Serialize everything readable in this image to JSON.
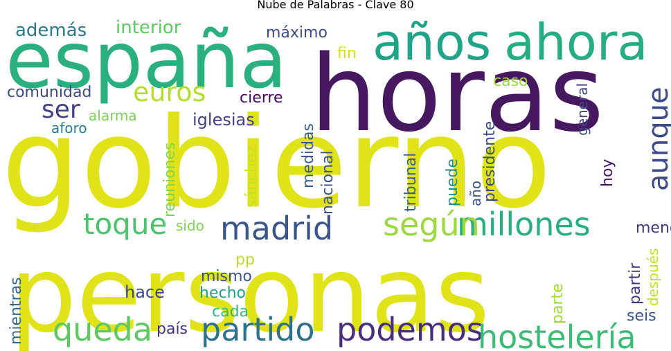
{
  "title": "Nube de Palabras - Clave 80",
  "words": [
    {
      "text": "gobierno",
      "color": "#dfe318"
    },
    {
      "text": "personas",
      "color": "#dfe318"
    },
    {
      "text": "horas",
      "color": "#46185f"
    },
    {
      "text": "españa",
      "color": "#2ab07f"
    },
    {
      "text": "años",
      "color": "#20a386"
    },
    {
      "text": "ahora",
      "color": "#25ac82"
    },
    {
      "text": "partido",
      "color": "#2c718e"
    },
    {
      "text": "podemos",
      "color": "#472f7d"
    },
    {
      "text": "hostelería",
      "color": "#3bbb75"
    },
    {
      "text": "millones",
      "color": "#29af7f"
    },
    {
      "text": "queda",
      "color": "#5ec962"
    },
    {
      "text": "madrid",
      "color": "#3a548c"
    },
    {
      "text": "según",
      "color": "#9bd93c"
    },
    {
      "text": "toque",
      "color": "#4cc26c"
    },
    {
      "text": "euros",
      "color": "#b5de2b"
    },
    {
      "text": "aunque",
      "color": "#3e4989"
    },
    {
      "text": "ser",
      "color": "#424086"
    },
    {
      "text": "además",
      "color": "#2a788e"
    },
    {
      "text": "interior",
      "color": "#5ec962"
    },
    {
      "text": "máximo",
      "color": "#3e4989"
    },
    {
      "text": "fin",
      "color": "#d8e219"
    },
    {
      "text": "comunidad",
      "color": "#3e4989"
    },
    {
      "text": "cierre",
      "color": "#46085c"
    },
    {
      "text": "caso",
      "color": "#9bd93c"
    },
    {
      "text": "alarma",
      "color": "#7ad151"
    },
    {
      "text": "iglesias",
      "color": "#433e85"
    },
    {
      "text": "aforo",
      "color": "#277f8e"
    },
    {
      "text": "general",
      "color": "#414487"
    },
    {
      "text": "presidente",
      "color": "#3e4a89"
    },
    {
      "text": "reuniones",
      "color": "#84d44b"
    },
    {
      "text": "sánchez",
      "color": "#c8e020"
    },
    {
      "text": "medidas",
      "color": "#365c8d"
    },
    {
      "text": "nacional",
      "color": "#3b528b"
    },
    {
      "text": "tribunal",
      "color": "#33638d"
    },
    {
      "text": "puede",
      "color": "#21918c"
    },
    {
      "text": "menos",
      "color": "#453781"
    },
    {
      "text": "año",
      "color": "#3b528b"
    },
    {
      "text": "hoy",
      "color": "#48186a"
    },
    {
      "text": "sido",
      "color": "#7fd34e"
    },
    {
      "text": "pp",
      "color": "#bddf26"
    },
    {
      "text": "mismo",
      "color": "#3b528b"
    },
    {
      "text": "hace",
      "color": "#3e4989"
    },
    {
      "text": "hecho",
      "color": "#20a386"
    },
    {
      "text": "cada",
      "color": "#35b779"
    },
    {
      "text": "partir",
      "color": "#453581"
    },
    {
      "text": "parte",
      "color": "#a0da39"
    },
    {
      "text": "después",
      "color": "#c0df25"
    },
    {
      "text": "seis",
      "color": "#3b528b"
    },
    {
      "text": "mientras",
      "color": "#31688e"
    },
    {
      "text": "país",
      "color": "#46337f"
    }
  ]
}
